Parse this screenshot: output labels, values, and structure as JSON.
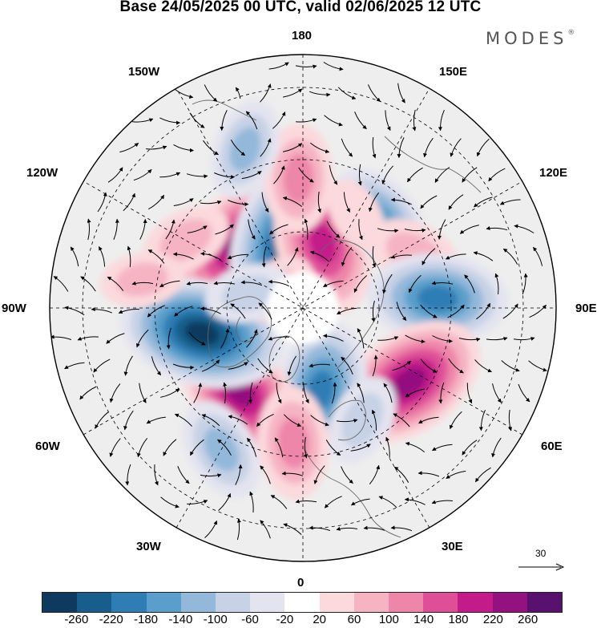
{
  "title": "Base 24/05/2025 00 UTC, valid 02/06/2025 12 UTC",
  "brand": "MODES",
  "brand_mark": "®",
  "longitude_labels": {
    "top": "180",
    "bottom": "0",
    "left": "90W",
    "right": "90E",
    "upper_left_outer": "150W",
    "upper_left_inner": "120W",
    "upper_right_outer": "150E",
    "upper_right_inner": "120E",
    "lower_left_outer": "30W",
    "lower_left_inner": "60W",
    "lower_right_outer": "30E",
    "lower_right_inner": "60E"
  },
  "reference_vector": {
    "label": "30"
  },
  "colorbar": {
    "colors": [
      "#0d3a5e",
      "#175e8c",
      "#2f7db5",
      "#5a9fcb",
      "#93b8da",
      "#c7d2e6",
      "#e4e4f0",
      "#ffffff",
      "#fbd9dc",
      "#f6b4c3",
      "#ee86aa",
      "#df4f98",
      "#c41b8a",
      "#941180",
      "#58116e"
    ],
    "ticks": [
      "-260",
      "-220",
      "-180",
      "-140",
      "-100",
      "-60",
      "-20",
      "20",
      "60",
      "100",
      "140",
      "180",
      "220",
      "260"
    ]
  },
  "field_anomalies": [
    {
      "lon": 225,
      "lat": 58,
      "value": 230
    },
    {
      "lon": 196,
      "lat": 66,
      "value": -250
    },
    {
      "lon": 163,
      "lat": 66,
      "value": 210
    },
    {
      "lon": 139,
      "lat": 48,
      "value": -140
    },
    {
      "lon": 182,
      "lat": 44,
      "value": 120
    },
    {
      "lon": 150,
      "lat": 52,
      "value": 40
    },
    {
      "lon": 116,
      "lat": 46,
      "value": 90
    },
    {
      "lon": 94,
      "lat": 42,
      "value": -200
    },
    {
      "lon": 55,
      "lat": 44,
      "value": 240
    },
    {
      "lon": 12,
      "lat": 60,
      "value": -200
    },
    {
      "lon": 28,
      "lat": 45,
      "value": -80
    },
    {
      "lon": 322,
      "lat": 53,
      "value": 220
    },
    {
      "lon": 284,
      "lat": 53,
      "value": -260
    },
    {
      "lon": 330,
      "lat": 32,
      "value": -110
    },
    {
      "lon": 356,
      "lat": 42,
      "value": 130
    },
    {
      "lon": 240,
      "lat": 42,
      "value": 80
    },
    {
      "lon": 260,
      "lat": 32,
      "value": 60
    },
    {
      "lon": 236,
      "lat": 78,
      "value": 60
    },
    {
      "lon": 255,
      "lat": 70,
      "value": -70
    },
    {
      "lon": 200,
      "lat": 30,
      "value": -100
    }
  ]
}
